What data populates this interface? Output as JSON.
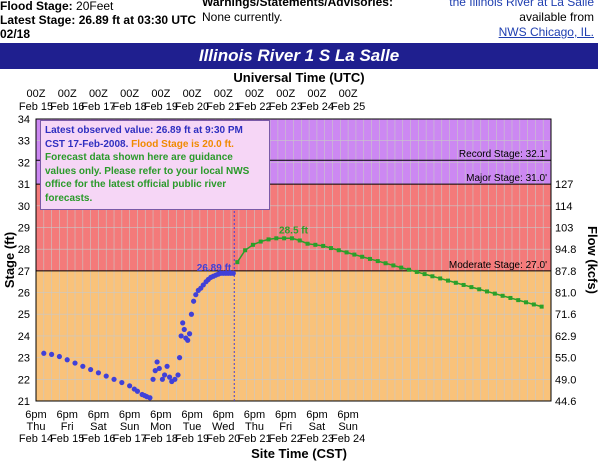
{
  "header": {
    "flood_stage_label": "Flood Stage:",
    "flood_stage_value": "20Feet",
    "latest_stage_label": "Latest Stage:",
    "latest_stage_value": "26.89 ft at 03:30 UTC",
    "date_fragment": "02/18",
    "warnings_label": "Warnings/Statements/Advisories:",
    "warnings_value": "None currently.",
    "info_line1": "the Illinois River at La Salle",
    "info_line2": "available from",
    "info_link": "NWS Chicago, IL."
  },
  "chart_data": {
    "type": "line",
    "title": "Illinois River 1 S La Salle",
    "top_axis_title": "Universal Time (UTC)",
    "bottom_axis_title": "Site Time (CST)",
    "ylabel": "Stage (ft)",
    "ylabel_right": "Flow (kcfs)",
    "ylim": [
      21,
      34
    ],
    "y_ticks": [
      21,
      22,
      23,
      24,
      25,
      26,
      27,
      28,
      29,
      30,
      31,
      32,
      33,
      34
    ],
    "top_ticks": [
      {
        "t": "00Z",
        "d": "Feb 15"
      },
      {
        "t": "00Z",
        "d": "Feb 16"
      },
      {
        "t": "00Z",
        "d": "Feb 17"
      },
      {
        "t": "00Z",
        "d": "Feb 18"
      },
      {
        "t": "00Z",
        "d": "Feb 19"
      },
      {
        "t": "00Z",
        "d": "Feb 20"
      },
      {
        "t": "00Z",
        "d": "Feb 21"
      },
      {
        "t": "00Z",
        "d": "Feb 22"
      },
      {
        "t": "00Z",
        "d": "Feb 23"
      },
      {
        "t": "00Z",
        "d": "Feb 24"
      },
      {
        "t": "00Z",
        "d": "Feb 25"
      }
    ],
    "bottom_ticks": [
      {
        "t": "6pm",
        "w": "Thu",
        "d": "Feb 14"
      },
      {
        "t": "6pm",
        "w": "Fri",
        "d": "Feb 15"
      },
      {
        "t": "6pm",
        "w": "Sat",
        "d": "Feb 16"
      },
      {
        "t": "6pm",
        "w": "Sun",
        "d": "Feb 17"
      },
      {
        "t": "6pm",
        "w": "Mon",
        "d": "Feb 18"
      },
      {
        "t": "6pm",
        "w": "Tue",
        "d": "Feb 19"
      },
      {
        "t": "6pm",
        "w": "Wed",
        "d": "Feb 20"
      },
      {
        "t": "6pm",
        "w": "Thu",
        "d": "Feb 21"
      },
      {
        "t": "6pm",
        "w": "Fri",
        "d": "Feb 22"
      },
      {
        "t": "6pm",
        "w": "Sat",
        "d": "Feb 23"
      },
      {
        "t": "6pm",
        "w": "Sun",
        "d": "Feb 24"
      }
    ],
    "flow_ticks": [
      {
        "stage": 21,
        "label": "44.6"
      },
      {
        "stage": 22,
        "label": "49.0"
      },
      {
        "stage": 23,
        "label": "55.0"
      },
      {
        "stage": 24,
        "label": "62.9"
      },
      {
        "stage": 25,
        "label": "71.6"
      },
      {
        "stage": 26,
        "label": "81.0"
      },
      {
        "stage": 27,
        "label": "87.8"
      },
      {
        "stage": 28,
        "label": "94.8"
      },
      {
        "stage": 29,
        "label": "103"
      },
      {
        "stage": 30,
        "label": "114"
      },
      {
        "stage": 31,
        "label": "127"
      }
    ],
    "thresholds": [
      {
        "name": "Record Stage: 32.1'",
        "value": 32.1
      },
      {
        "name": "Major Stage: 31.0'",
        "value": 31.0
      },
      {
        "name": "Moderate Stage: 27.0'",
        "value": 27.0
      }
    ],
    "bands": [
      {
        "from": 21,
        "to": 27,
        "color": "#f9c27a"
      },
      {
        "from": 27,
        "to": 31,
        "color": "#f47a7a"
      },
      {
        "from": 31,
        "to": 34,
        "color": "#cc88f2"
      }
    ],
    "observed": {
      "color": "#4040d8",
      "x": [
        14.75,
        15.0,
        15.25,
        15.5,
        15.75,
        16.0,
        16.25,
        16.5,
        16.75,
        17.0,
        17.25,
        17.5,
        17.65,
        17.75,
        17.9,
        17.98,
        18.05,
        18.15,
        18.25,
        18.32,
        18.38,
        18.45,
        18.55,
        18.62,
        18.7,
        18.78,
        18.85,
        18.95,
        19.05,
        19.1,
        19.15,
        19.2,
        19.25,
        19.3,
        19.36,
        19.42,
        19.48,
        19.55,
        19.62,
        19.7,
        19.78,
        19.86,
        19.95,
        20.02,
        20.1,
        20.18,
        20.26,
        20.34,
        20.42,
        20.5,
        20.58,
        20.66,
        20.74,
        20.82
      ],
      "y": [
        23.2,
        23.15,
        23.05,
        22.9,
        22.75,
        22.6,
        22.45,
        22.3,
        22.15,
        22.0,
        21.85,
        21.7,
        21.55,
        21.45,
        21.3,
        21.25,
        21.2,
        21.15,
        22.0,
        22.4,
        22.8,
        22.5,
        22.0,
        22.2,
        22.6,
        22.1,
        21.9,
        22.0,
        22.2,
        23.0,
        24.0,
        24.6,
        24.3,
        23.9,
        23.8,
        24.1,
        25.0,
        25.6,
        25.9,
        26.1,
        26.2,
        26.35,
        26.5,
        26.6,
        26.7,
        26.75,
        26.8,
        26.85,
        26.89,
        26.89,
        26.89,
        26.89,
        26.89,
        26.89
      ]
    },
    "forecast": {
      "color": "#2aa02a",
      "x": [
        20.95,
        21.2,
        21.45,
        21.7,
        21.95,
        22.2,
        22.45,
        22.7,
        22.95,
        23.2,
        23.45,
        23.7,
        23.95,
        24.2,
        24.45,
        24.7,
        24.95,
        25.2,
        25.45,
        25.7,
        25.95,
        26.2,
        26.45,
        26.7,
        26.95,
        27.2,
        27.45,
        27.7,
        27.95,
        28.2,
        28.45,
        28.7,
        28.95,
        29.2,
        29.45,
        29.7,
        29.95,
        30.2,
        30.45,
        30.7
      ],
      "y": [
        27.4,
        27.95,
        28.2,
        28.35,
        28.45,
        28.5,
        28.5,
        28.5,
        28.4,
        28.25,
        28.2,
        28.15,
        28.05,
        27.95,
        27.85,
        27.75,
        27.65,
        27.55,
        27.45,
        27.35,
        27.25,
        27.15,
        27.05,
        26.95,
        26.85,
        26.75,
        26.65,
        26.55,
        26.45,
        26.35,
        26.25,
        26.15,
        26.05,
        25.95,
        25.85,
        25.75,
        25.65,
        25.55,
        25.45,
        25.35
      ],
      "peak_label": "28.5 ft"
    },
    "latest_label": "26.89 ft",
    "x_range": [
      14.5,
      31.0
    ],
    "grid": true
  },
  "infobox": {
    "line_observed": "Latest observed value: 26.89 ft at 9:30 PM CST 17-Feb-2008.",
    "line_flood": "Flood Stage is 20.0 ft.",
    "line_forecast": "Forecast data shown here are guidance values only. Please refer to your local NWS office for the latest official public river forecasts."
  }
}
